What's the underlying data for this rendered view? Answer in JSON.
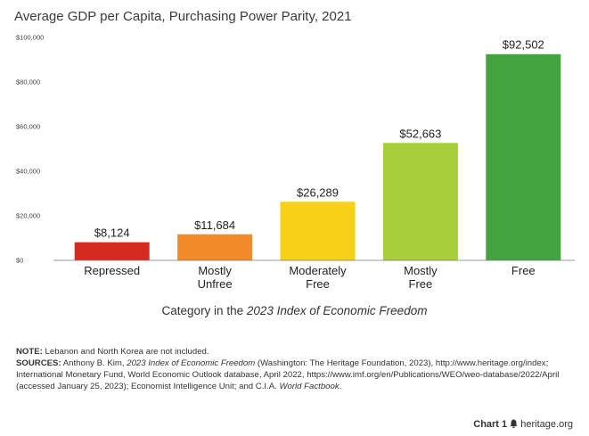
{
  "chart_data": {
    "type": "bar",
    "title": "Average GDP per Capita, Purchasing Power Parity, 2021",
    "xlabel_prefix": "Category in the ",
    "xlabel_emphasis": "2023 Index of Economic Freedom",
    "ylabel": "",
    "ylim": [
      0,
      100000
    ],
    "yticks": [
      "$0",
      "$20,000",
      "$40,000",
      "$60,000",
      "$80,000",
      "$100,000"
    ],
    "ytick_values": [
      0,
      20000,
      40000,
      60000,
      80000,
      100000
    ],
    "categories": [
      [
        "Repressed"
      ],
      [
        "Mostly",
        "Unfree"
      ],
      [
        "Moderately",
        "Free"
      ],
      [
        "Mostly",
        "Free"
      ],
      [
        "Free"
      ]
    ],
    "values": [
      8124,
      11684,
      26289,
      52663,
      92502
    ],
    "value_labels": [
      "$8,124",
      "$11,684",
      "$26,289",
      "$52,663",
      "$92,502"
    ],
    "colors": [
      "#d42a20",
      "#f28a2a",
      "#f7d117",
      "#a6cf3a",
      "#43a33f"
    ],
    "grid": false
  },
  "notes": {
    "note_label": "NOTE:",
    "note_text": " Lebanon and North Korea are not included.",
    "sources_label": "SOURCES:",
    "sources_text_1": " Anthony B. Kim, ",
    "sources_italic_1": "2023 Index of Economic Freedom",
    "sources_text_2": " (Washington: The Heritage Foundation, 2023), http://www.heritage.org/index; International Monetary Fund, World Economic Outlook database, April 2022, https://www.imf.org/en/Publications/WEO/weo-database/2022/April (accessed January 25, 2023); Economist Intelligence Unit; and C.I.A. ",
    "sources_italic_2": "World Factbook",
    "sources_text_3": "."
  },
  "footer": {
    "chart_number": "Chart 1",
    "site": "heritage.org"
  }
}
